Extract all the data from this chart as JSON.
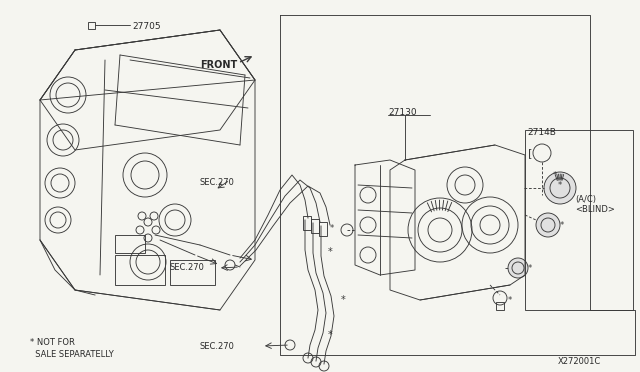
{
  "bg_color": "#f5f5f0",
  "line_color": "#3a3a3a",
  "text_color": "#2a2a2a",
  "fig_width": 6.4,
  "fig_height": 3.72,
  "dpi": 100,
  "lw": 0.65,
  "label_27705": "27705",
  "label_27130": "27130",
  "label_2714B": "2714B",
  "label_ac_blind": "(A/C)\n<BLIND>",
  "label_front": "FRONT",
  "label_sec270": "SEC.270",
  "label_not_for_sale": "* NOT FOR\n  SALE SEPARATELLY",
  "label_code": "X272001C"
}
